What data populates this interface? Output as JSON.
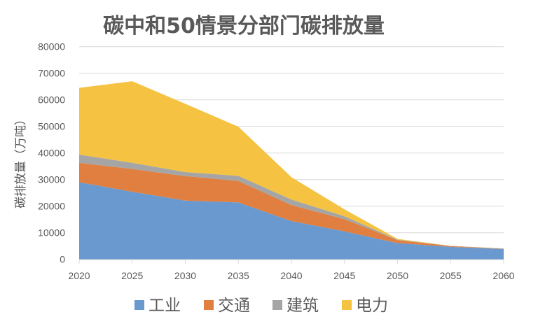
{
  "chart_data": {
    "type": "area",
    "stacked": true,
    "title": "碳中和50情景分部门碳排放量",
    "xlabel": "",
    "ylabel": "碳排放量（万吨）",
    "x": [
      2020,
      2025,
      2030,
      2035,
      2040,
      2045,
      2050,
      2055,
      2060
    ],
    "x_tick_labels": [
      "2020",
      "2025",
      "2030",
      "2035",
      "2040",
      "2045",
      "2050",
      "2055",
      "2060"
    ],
    "ylim": [
      0,
      80000
    ],
    "y_ticks": [
      0,
      10000,
      20000,
      30000,
      40000,
      50000,
      60000,
      70000,
      80000
    ],
    "y_tick_labels": [
      "0",
      "10000",
      "20000",
      "30000",
      "40000",
      "50000",
      "60000",
      "70000",
      "80000"
    ],
    "grid": true,
    "legend_position": "bottom",
    "series": [
      {
        "name": "工业",
        "color": "#6a99d0",
        "values": [
          29000,
          25400,
          22100,
          21400,
          14400,
          10500,
          6100,
          4700,
          3900
        ]
      },
      {
        "name": "交通",
        "color": "#e07f3f",
        "values": [
          7300,
          8600,
          9200,
          8100,
          6000,
          4600,
          1100,
          300,
          100
        ]
      },
      {
        "name": "建筑",
        "color": "#a5a5a5",
        "values": [
          3100,
          2300,
          1500,
          1900,
          2100,
          1100,
          200,
          50,
          50
        ]
      },
      {
        "name": "电力",
        "color": "#f5c242",
        "values": [
          25100,
          30700,
          25700,
          18500,
          8400,
          2600,
          300,
          50,
          50
        ]
      }
    ]
  }
}
